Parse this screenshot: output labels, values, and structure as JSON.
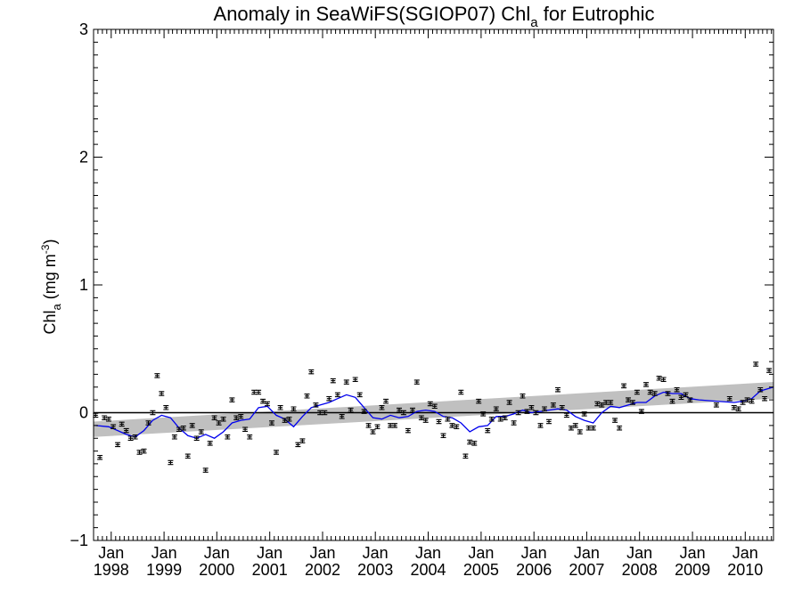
{
  "chart_data": {
    "type": "scatter",
    "title_main": "Anomaly in SeaWiFS(SGIOP07) Chl",
    "title_sub": "a",
    "title_tail": " for Eutrophic",
    "ylabel_main": "Chl",
    "ylabel_sub": "a",
    "ylabel_units_pre": " (mg m",
    "ylabel_units_sup": "-3",
    "ylabel_units_post": ")",
    "xlabel": "",
    "xlim": [
      "1997-09-01",
      "2010-07-15"
    ],
    "ylim": [
      -1,
      3
    ],
    "y_ticks": [
      {
        "value": -1,
        "label": "−1"
      },
      {
        "value": 0,
        "label": "0"
      },
      {
        "value": 1,
        "label": "1"
      },
      {
        "value": 2,
        "label": "2"
      },
      {
        "value": 3,
        "label": "3"
      }
    ],
    "x_ticks": [
      {
        "date": "1998-01-01",
        "month": "Jan",
        "year": "1998"
      },
      {
        "date": "1999-01-01",
        "month": "Jan",
        "year": "1999"
      },
      {
        "date": "2000-01-01",
        "month": "Jan",
        "year": "2000"
      },
      {
        "date": "2001-01-01",
        "month": "Jan",
        "year": "2001"
      },
      {
        "date": "2002-01-01",
        "month": "Jan",
        "year": "2002"
      },
      {
        "date": "2003-01-01",
        "month": "Jan",
        "year": "2003"
      },
      {
        "date": "2004-01-01",
        "month": "Jan",
        "year": "2004"
      },
      {
        "date": "2005-01-01",
        "month": "Jan",
        "year": "2005"
      },
      {
        "date": "2006-01-01",
        "month": "Jan",
        "year": "2006"
      },
      {
        "date": "2007-01-01",
        "month": "Jan",
        "year": "2007"
      },
      {
        "date": "2008-01-01",
        "month": "Jan",
        "year": "2008"
      },
      {
        "date": "2009-01-01",
        "month": "Jan",
        "year": "2009"
      },
      {
        "date": "2010-01-01",
        "month": "Jan",
        "year": "2010"
      }
    ],
    "grid": false,
    "legend": "none",
    "colors": {
      "points": "#000000",
      "running_mean": "#0000ee",
      "trend_band": "#c0c0c0",
      "zero_line": "#000000"
    },
    "trend_band": {
      "x": [
        "1997-09-01",
        "2010-07-15"
      ],
      "lower": [
        -0.19,
        0.11
      ],
      "upper": [
        -0.07,
        0.24
      ]
    },
    "zero_line": 0,
    "monthly_anomalies": [
      {
        "x": "1997-09",
        "y": -0.02
      },
      {
        "x": "1997-10",
        "y": -0.35
      },
      {
        "x": "1997-11",
        "y": -0.04
      },
      {
        "x": "1997-12",
        "y": -0.05
      },
      {
        "x": "1998-01",
        "y": -0.11
      },
      {
        "x": "1998-02",
        "y": -0.25
      },
      {
        "x": "1998-03",
        "y": -0.09
      },
      {
        "x": "1998-04",
        "y": -0.14
      },
      {
        "x": "1998-05",
        "y": -0.2
      },
      {
        "x": "1998-06",
        "y": -0.19
      },
      {
        "x": "1998-07",
        "y": -0.31
      },
      {
        "x": "1998-08",
        "y": -0.3
      },
      {
        "x": "1998-09",
        "y": -0.08
      },
      {
        "x": "1998-10",
        "y": 0.0
      },
      {
        "x": "1998-11",
        "y": 0.29
      },
      {
        "x": "1998-12",
        "y": 0.15
      },
      {
        "x": "1999-01",
        "y": 0.04
      },
      {
        "x": "1999-02",
        "y": -0.39
      },
      {
        "x": "1999-03",
        "y": -0.19
      },
      {
        "x": "1999-04",
        "y": -0.13
      },
      {
        "x": "1999-05",
        "y": -0.12
      },
      {
        "x": "1999-06",
        "y": -0.34
      },
      {
        "x": "1999-07",
        "y": -0.1
      },
      {
        "x": "1999-08",
        "y": -0.2
      },
      {
        "x": "1999-09",
        "y": -0.15
      },
      {
        "x": "1999-10",
        "y": -0.45
      },
      {
        "x": "1999-11",
        "y": -0.24
      },
      {
        "x": "1999-12",
        "y": -0.04
      },
      {
        "x": "2000-01",
        "y": -0.08
      },
      {
        "x": "2000-02",
        "y": -0.05
      },
      {
        "x": "2000-03",
        "y": -0.19
      },
      {
        "x": "2000-04",
        "y": 0.1
      },
      {
        "x": "2000-05",
        "y": -0.04
      },
      {
        "x": "2000-06",
        "y": -0.03
      },
      {
        "x": "2000-07",
        "y": -0.13
      },
      {
        "x": "2000-08",
        "y": -0.19
      },
      {
        "x": "2000-09",
        "y": 0.16
      },
      {
        "x": "2000-10",
        "y": 0.16
      },
      {
        "x": "2000-11",
        "y": 0.09
      },
      {
        "x": "2000-12",
        "y": 0.07
      },
      {
        "x": "2001-01",
        "y": -0.08
      },
      {
        "x": "2001-02",
        "y": -0.31
      },
      {
        "x": "2001-03",
        "y": 0.04
      },
      {
        "x": "2001-04",
        "y": -0.06
      },
      {
        "x": "2001-05",
        "y": -0.05
      },
      {
        "x": "2001-06",
        "y": 0.03
      },
      {
        "x": "2001-07",
        "y": -0.25
      },
      {
        "x": "2001-08",
        "y": -0.22
      },
      {
        "x": "2001-09",
        "y": 0.13
      },
      {
        "x": "2001-10",
        "y": 0.32
      },
      {
        "x": "2001-11",
        "y": 0.06
      },
      {
        "x": "2001-12",
        "y": 0.0
      },
      {
        "x": "2002-01",
        "y": 0.0
      },
      {
        "x": "2002-02",
        "y": 0.11
      },
      {
        "x": "2002-03",
        "y": 0.25
      },
      {
        "x": "2002-04",
        "y": 0.14
      },
      {
        "x": "2002-05",
        "y": -0.03
      },
      {
        "x": "2002-06",
        "y": 0.24
      },
      {
        "x": "2002-07",
        "y": 0.02
      },
      {
        "x": "2002-08",
        "y": 0.26
      },
      {
        "x": "2002-09",
        "y": 0.14
      },
      {
        "x": "2002-10",
        "y": 0.01
      },
      {
        "x": "2002-11",
        "y": -0.1
      },
      {
        "x": "2002-12",
        "y": -0.15
      },
      {
        "x": "2003-01",
        "y": -0.11
      },
      {
        "x": "2003-02",
        "y": 0.04
      },
      {
        "x": "2003-03",
        "y": 0.09
      },
      {
        "x": "2003-04",
        "y": -0.1
      },
      {
        "x": "2003-05",
        "y": -0.1
      },
      {
        "x": "2003-06",
        "y": 0.02
      },
      {
        "x": "2003-07",
        "y": 0.0
      },
      {
        "x": "2003-08",
        "y": -0.14
      },
      {
        "x": "2003-09",
        "y": 0.02
      },
      {
        "x": "2003-10",
        "y": 0.24
      },
      {
        "x": "2003-11",
        "y": -0.04
      },
      {
        "x": "2003-12",
        "y": -0.06
      },
      {
        "x": "2004-01",
        "y": 0.07
      },
      {
        "x": "2004-02",
        "y": 0.05
      },
      {
        "x": "2004-03",
        "y": -0.07
      },
      {
        "x": "2004-04",
        "y": -0.18
      },
      {
        "x": "2004-05",
        "y": -0.05
      },
      {
        "x": "2004-06",
        "y": -0.1
      },
      {
        "x": "2004-07",
        "y": -0.11
      },
      {
        "x": "2004-08",
        "y": 0.16
      },
      {
        "x": "2004-09",
        "y": -0.34
      },
      {
        "x": "2004-10",
        "y": -0.23
      },
      {
        "x": "2004-11",
        "y": -0.24
      },
      {
        "x": "2004-12",
        "y": 0.09
      },
      {
        "x": "2005-01",
        "y": -0.01
      },
      {
        "x": "2005-02",
        "y": -0.14
      },
      {
        "x": "2005-03",
        "y": -0.05
      },
      {
        "x": "2005-04",
        "y": 0.03
      },
      {
        "x": "2005-05",
        "y": -0.05
      },
      {
        "x": "2005-06",
        "y": -0.04
      },
      {
        "x": "2005-07",
        "y": 0.08
      },
      {
        "x": "2005-08",
        "y": -0.08
      },
      {
        "x": "2005-09",
        "y": 0.0
      },
      {
        "x": "2005-10",
        "y": 0.13
      },
      {
        "x": "2005-11",
        "y": 0.01
      },
      {
        "x": "2005-12",
        "y": 0.04
      },
      {
        "x": "2006-01",
        "y": 0.0
      },
      {
        "x": "2006-02",
        "y": -0.1
      },
      {
        "x": "2006-03",
        "y": 0.03
      },
      {
        "x": "2006-04",
        "y": -0.07
      },
      {
        "x": "2006-05",
        "y": 0.06
      },
      {
        "x": "2006-06",
        "y": 0.18
      },
      {
        "x": "2006-07",
        "y": 0.04
      },
      {
        "x": "2006-08",
        "y": -0.02
      },
      {
        "x": "2006-09",
        "y": -0.12
      },
      {
        "x": "2006-10",
        "y": -0.1
      },
      {
        "x": "2006-11",
        "y": -0.15
      },
      {
        "x": "2006-12",
        "y": -0.01
      },
      {
        "x": "2007-01",
        "y": -0.12
      },
      {
        "x": "2007-02",
        "y": -0.12
      },
      {
        "x": "2007-03",
        "y": 0.07
      },
      {
        "x": "2007-04",
        "y": 0.06
      },
      {
        "x": "2007-05",
        "y": 0.08
      },
      {
        "x": "2007-06",
        "y": 0.08
      },
      {
        "x": "2007-07",
        "y": -0.06
      },
      {
        "x": "2007-08",
        "y": -0.12
      },
      {
        "x": "2007-09",
        "y": 0.21
      },
      {
        "x": "2007-10",
        "y": 0.1
      },
      {
        "x": "2007-11",
        "y": 0.08
      },
      {
        "x": "2007-12",
        "y": 0.16
      },
      {
        "x": "2008-01",
        "y": 0.01
      },
      {
        "x": "2008-02",
        "y": 0.22
      },
      {
        "x": "2008-03",
        "y": 0.16
      },
      {
        "x": "2008-04",
        "y": 0.15
      },
      {
        "x": "2008-05",
        "y": 0.27
      },
      {
        "x": "2008-06",
        "y": 0.26
      },
      {
        "x": "2008-07",
        "y": 0.15
      },
      {
        "x": "2008-08",
        "y": 0.09
      },
      {
        "x": "2008-09",
        "y": 0.18
      },
      {
        "x": "2008-10",
        "y": 0.12
      },
      {
        "x": "2008-11",
        "y": 0.14
      },
      {
        "x": "2008-12",
        "y": 0.1
      },
      {
        "x": "2009-06",
        "y": 0.06
      },
      {
        "x": "2009-09",
        "y": 0.11
      },
      {
        "x": "2009-10",
        "y": 0.04
      },
      {
        "x": "2009-11",
        "y": 0.03
      },
      {
        "x": "2009-12",
        "y": 0.08
      },
      {
        "x": "2010-01",
        "y": 0.1
      },
      {
        "x": "2010-02",
        "y": 0.09
      },
      {
        "x": "2010-03",
        "y": 0.38
      },
      {
        "x": "2010-04",
        "y": 0.18
      },
      {
        "x": "2010-05",
        "y": 0.11
      },
      {
        "x": "2010-06",
        "y": 0.33
      }
    ],
    "running_mean": [
      {
        "x": "1997-09",
        "y": -0.1
      },
      {
        "x": "1997-12",
        "y": -0.11
      },
      {
        "x": "1998-02",
        "y": -0.14
      },
      {
        "x": "1998-04",
        "y": -0.17
      },
      {
        "x": "1998-06",
        "y": -0.19
      },
      {
        "x": "1998-08",
        "y": -0.14
      },
      {
        "x": "1998-10",
        "y": -0.06
      },
      {
        "x": "1998-12",
        "y": -0.02
      },
      {
        "x": "1999-02",
        "y": -0.04
      },
      {
        "x": "1999-04",
        "y": -0.12
      },
      {
        "x": "1999-06",
        "y": -0.18
      },
      {
        "x": "1999-08",
        "y": -0.2
      },
      {
        "x": "1999-10",
        "y": -0.17
      },
      {
        "x": "1999-12",
        "y": -0.2
      },
      {
        "x": "2000-02",
        "y": -0.15
      },
      {
        "x": "2000-04",
        "y": -0.08
      },
      {
        "x": "2000-06",
        "y": -0.06
      },
      {
        "x": "2000-08",
        "y": -0.05
      },
      {
        "x": "2000-10",
        "y": 0.04
      },
      {
        "x": "2000-12",
        "y": 0.05
      },
      {
        "x": "2001-02",
        "y": -0.02
      },
      {
        "x": "2001-04",
        "y": -0.05
      },
      {
        "x": "2001-06",
        "y": -0.11
      },
      {
        "x": "2001-08",
        "y": -0.03
      },
      {
        "x": "2001-10",
        "y": 0.04
      },
      {
        "x": "2001-12",
        "y": 0.06
      },
      {
        "x": "2002-02",
        "y": 0.08
      },
      {
        "x": "2002-04",
        "y": 0.11
      },
      {
        "x": "2002-06",
        "y": 0.14
      },
      {
        "x": "2002-08",
        "y": 0.12
      },
      {
        "x": "2002-10",
        "y": 0.04
      },
      {
        "x": "2002-12",
        "y": -0.04
      },
      {
        "x": "2003-02",
        "y": -0.05
      },
      {
        "x": "2003-04",
        "y": -0.02
      },
      {
        "x": "2003-06",
        "y": -0.04
      },
      {
        "x": "2003-08",
        "y": -0.03
      },
      {
        "x": "2003-10",
        "y": 0.01
      },
      {
        "x": "2003-12",
        "y": 0.02
      },
      {
        "x": "2004-02",
        "y": 0.01
      },
      {
        "x": "2004-04",
        "y": -0.03
      },
      {
        "x": "2004-06",
        "y": -0.04
      },
      {
        "x": "2004-08",
        "y": -0.08
      },
      {
        "x": "2004-10",
        "y": -0.15
      },
      {
        "x": "2004-12",
        "y": -0.11
      },
      {
        "x": "2005-02",
        "y": -0.1
      },
      {
        "x": "2005-04",
        "y": -0.03
      },
      {
        "x": "2005-06",
        "y": -0.03
      },
      {
        "x": "2005-08",
        "y": -0.01
      },
      {
        "x": "2005-10",
        "y": 0.02
      },
      {
        "x": "2005-12",
        "y": 0.0
      },
      {
        "x": "2006-02",
        "y": 0.01
      },
      {
        "x": "2006-04",
        "y": 0.02
      },
      {
        "x": "2006-06",
        "y": 0.03
      },
      {
        "x": "2006-08",
        "y": 0.02
      },
      {
        "x": "2006-10",
        "y": -0.03
      },
      {
        "x": "2006-12",
        "y": -0.06
      },
      {
        "x": "2007-02",
        "y": -0.08
      },
      {
        "x": "2007-04",
        "y": 0.0
      },
      {
        "x": "2007-06",
        "y": 0.05
      },
      {
        "x": "2007-08",
        "y": 0.04
      },
      {
        "x": "2007-10",
        "y": 0.06
      },
      {
        "x": "2007-12",
        "y": 0.08
      },
      {
        "x": "2008-02",
        "y": 0.08
      },
      {
        "x": "2008-04",
        "y": 0.13
      },
      {
        "x": "2008-06",
        "y": 0.16
      },
      {
        "x": "2008-08",
        "y": 0.15
      },
      {
        "x": "2008-10",
        "y": 0.15
      },
      {
        "x": "2008-12",
        "y": 0.11
      },
      {
        "x": "2009-02",
        "y": 0.1
      },
      {
        "x": "2009-06",
        "y": 0.09
      },
      {
        "x": "2009-10",
        "y": 0.08
      },
      {
        "x": "2009-12",
        "y": 0.09
      },
      {
        "x": "2010-02",
        "y": 0.11
      },
      {
        "x": "2010-04",
        "y": 0.17
      },
      {
        "x": "2010-07",
        "y": 0.2
      }
    ]
  }
}
